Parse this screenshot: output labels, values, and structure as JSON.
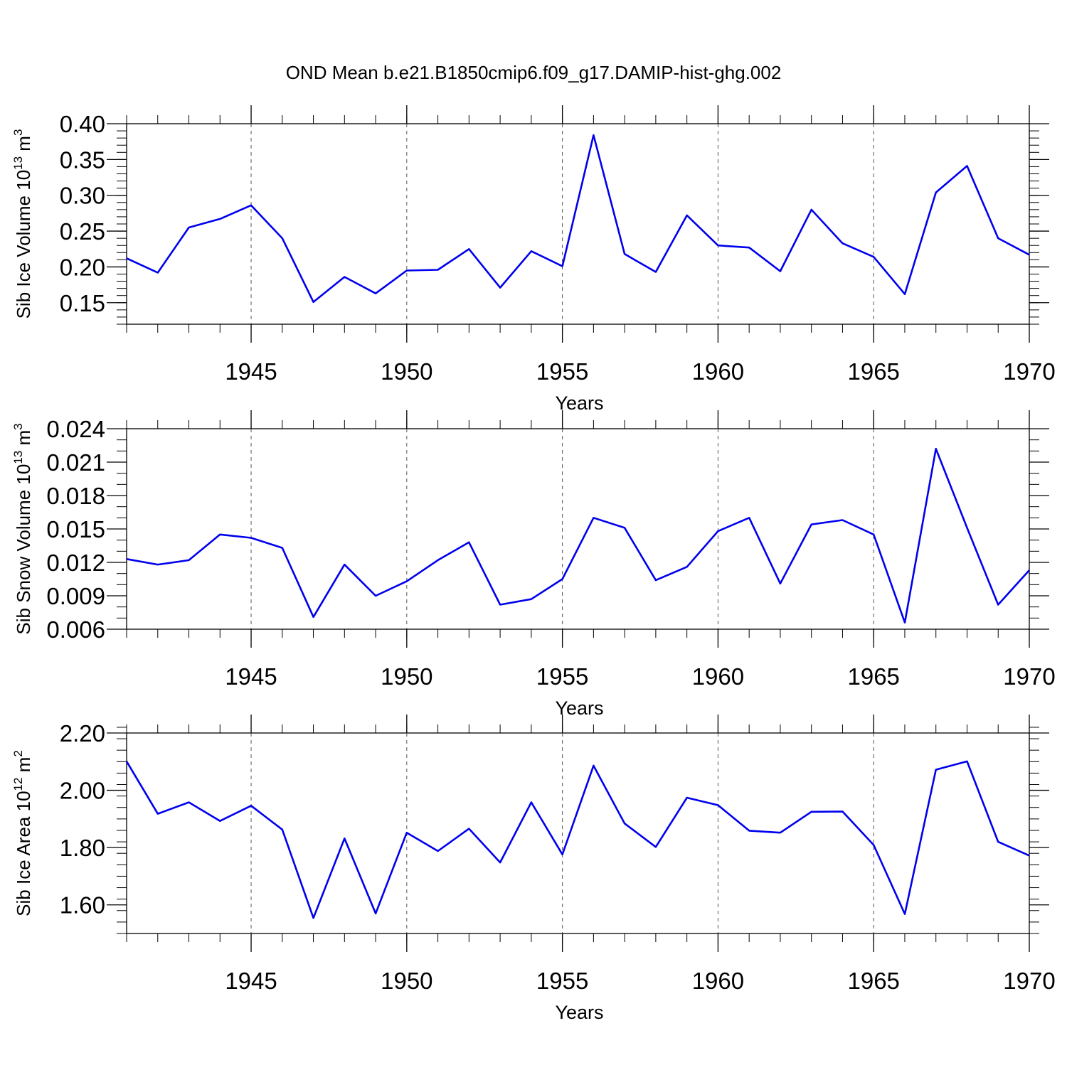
{
  "title": "OND Mean b.e21.B1850cmip6.f09_g17.DAMIP-hist-ghg.002",
  "colors": {
    "line": "#0000ee",
    "axis": "#000000",
    "grid": "#555555",
    "background": "#ffffff"
  },
  "chart_data": [
    {
      "type": "line",
      "title": "",
      "xlabel": "Years",
      "ylabel_main": "Sib Ice Volume 10",
      "ylabel_exp": "13",
      "ylabel_unit": " m",
      "ylabel_unit_exp": "3",
      "xlim": [
        1941,
        1970
      ],
      "ylim": [
        0.12,
        0.4
      ],
      "xticks": [
        1945,
        1950,
        1955,
        1960,
        1965,
        1970
      ],
      "xtick_labels": [
        "1945",
        "1950",
        "1955",
        "1960",
        "1965",
        "1970"
      ],
      "yticks": [
        0.15,
        0.2,
        0.25,
        0.3,
        0.35,
        0.4
      ],
      "ytick_labels": [
        "0.15",
        "0.20",
        "0.25",
        "0.30",
        "0.35",
        "0.40"
      ],
      "yminor_step": 0.01,
      "grid_x": true,
      "x": [
        1941,
        1942,
        1943,
        1944,
        1945,
        1946,
        1947,
        1948,
        1949,
        1950,
        1951,
        1952,
        1953,
        1954,
        1955,
        1956,
        1957,
        1958,
        1959,
        1960,
        1961,
        1962,
        1963,
        1964,
        1965,
        1966,
        1967,
        1968,
        1969,
        1970
      ],
      "series": [
        {
          "name": "Sib Ice Volume",
          "values": [
            0.212,
            0.192,
            0.255,
            0.267,
            0.286,
            0.24,
            0.151,
            0.186,
            0.163,
            0.195,
            0.196,
            0.225,
            0.171,
            0.222,
            0.201,
            0.384,
            0.218,
            0.193,
            0.272,
            0.23,
            0.227,
            0.194,
            0.28,
            0.233,
            0.214,
            0.162,
            0.304,
            0.341,
            0.24,
            0.217
          ]
        }
      ]
    },
    {
      "type": "line",
      "title": "",
      "xlabel": "Years",
      "ylabel_main": "Sib Snow Volume 10",
      "ylabel_exp": "13",
      "ylabel_unit": " m",
      "ylabel_unit_exp": "3",
      "xlim": [
        1941,
        1970
      ],
      "ylim": [
        0.006,
        0.024
      ],
      "xticks": [
        1945,
        1950,
        1955,
        1960,
        1965,
        1970
      ],
      "xtick_labels": [
        "1945",
        "1950",
        "1955",
        "1960",
        "1965",
        "1970"
      ],
      "yticks": [
        0.006,
        0.009,
        0.012,
        0.015,
        0.018,
        0.021,
        0.024
      ],
      "ytick_labels": [
        "0.006",
        "0.009",
        "0.012",
        "0.015",
        "0.018",
        "0.021",
        "0.024"
      ],
      "yminor_step": 0.001,
      "grid_x": true,
      "x": [
        1941,
        1942,
        1943,
        1944,
        1945,
        1946,
        1947,
        1948,
        1949,
        1950,
        1951,
        1952,
        1953,
        1954,
        1955,
        1956,
        1957,
        1958,
        1959,
        1960,
        1961,
        1962,
        1963,
        1964,
        1965,
        1966,
        1967,
        1968,
        1969,
        1970
      ],
      "series": [
        {
          "name": "Sib Snow Volume",
          "values": [
            0.0123,
            0.0118,
            0.0122,
            0.0145,
            0.0142,
            0.0133,
            0.0071,
            0.0118,
            0.009,
            0.0103,
            0.0122,
            0.0138,
            0.0082,
            0.0087,
            0.0105,
            0.016,
            0.0151,
            0.0104,
            0.0116,
            0.0148,
            0.016,
            0.0101,
            0.0154,
            0.0158,
            0.0145,
            0.0066,
            0.0222,
            0.0151,
            0.0082,
            0.0113
          ]
        }
      ]
    },
    {
      "type": "line",
      "title": "",
      "xlabel": "Years",
      "ylabel_main": "Sib Ice Area 10",
      "ylabel_exp": "12",
      "ylabel_unit": " m",
      "ylabel_unit_exp": "2",
      "xlim": [
        1941,
        1970
      ],
      "ylim": [
        1.5,
        2.2
      ],
      "xticks": [
        1945,
        1950,
        1955,
        1960,
        1965,
        1970
      ],
      "xtick_labels": [
        "1945",
        "1950",
        "1955",
        "1960",
        "1965",
        "1970"
      ],
      "yticks": [
        1.6,
        1.8,
        2.0,
        2.2
      ],
      "ytick_labels": [
        "1.60",
        "1.80",
        "2.00",
        "2.20"
      ],
      "yminor_step": 0.04,
      "grid_x": true,
      "x": [
        1941,
        1942,
        1943,
        1944,
        1945,
        1946,
        1947,
        1948,
        1949,
        1950,
        1951,
        1952,
        1953,
        1954,
        1955,
        1956,
        1957,
        1958,
        1959,
        1960,
        1961,
        1962,
        1963,
        1964,
        1965,
        1966,
        1967,
        1968,
        1969,
        1970
      ],
      "series": [
        {
          "name": "Sib Ice Area",
          "values": [
            2.101,
            1.918,
            1.958,
            1.893,
            1.946,
            1.863,
            1.554,
            1.832,
            1.57,
            1.852,
            1.788,
            1.866,
            1.748,
            1.958,
            1.776,
            2.086,
            1.884,
            1.802,
            1.974,
            1.948,
            1.859,
            1.852,
            1.925,
            1.926,
            1.809,
            1.568,
            2.072,
            2.101,
            1.82,
            1.772
          ]
        }
      ]
    }
  ]
}
